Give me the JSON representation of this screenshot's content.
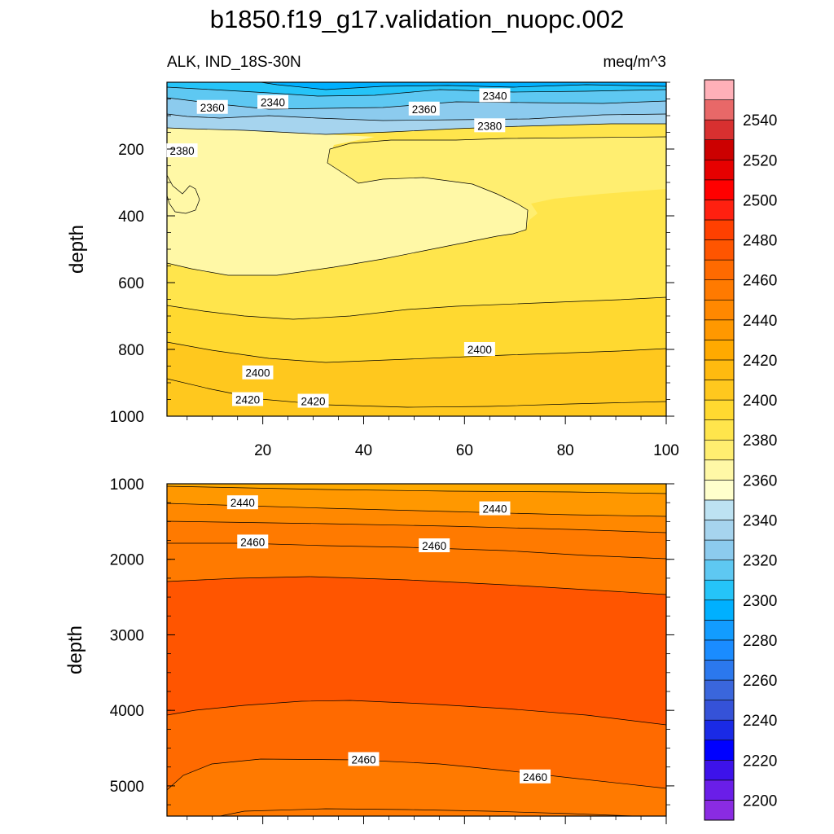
{
  "title": "b1850.f19_g17.validation_nuopc.002",
  "chart_data": {
    "type": "heatmap",
    "title": "b1850.f19_g17.validation_nuopc.002",
    "variable_label": "ALK, IND_18S-30N",
    "units_label": "meq/m^3",
    "ylabel": "depth",
    "x_ticks": [
      "20",
      "40",
      "60",
      "80",
      "100"
    ],
    "x_tick_values": [
      20,
      40,
      60,
      80,
      100
    ],
    "xlim": [
      1,
      100
    ],
    "panels": [
      {
        "name": "upper",
        "ylim": [
          0,
          1000
        ],
        "y_ticks": [
          "200",
          "400",
          "600",
          "800",
          "1000"
        ],
        "y_tick_values": [
          200,
          400,
          600,
          800,
          1000
        ],
        "contour_labels": [
          {
            "text": "2340",
            "x": 22,
            "y": 60
          },
          {
            "text": "2360",
            "x": 10,
            "y": 75
          },
          {
            "text": "2380",
            "x": 4,
            "y": 205
          },
          {
            "text": "2360",
            "x": 52,
            "y": 80
          },
          {
            "text": "2340",
            "x": 66,
            "y": 40
          },
          {
            "text": "2380",
            "x": 65,
            "y": 130
          },
          {
            "text": "2400",
            "x": 19,
            "y": 870
          },
          {
            "text": "2400",
            "x": 63,
            "y": 800
          },
          {
            "text": "2420",
            "x": 17,
            "y": 950
          },
          {
            "text": "2420",
            "x": 30,
            "y": 955
          }
        ]
      },
      {
        "name": "lower",
        "ylim": [
          1000,
          5400
        ],
        "y_ticks": [
          "1000",
          "2000",
          "3000",
          "4000",
          "5000"
        ],
        "y_tick_values": [
          1000,
          2000,
          3000,
          4000,
          5000
        ],
        "contour_labels": [
          {
            "text": "2440",
            "x": 16,
            "y": 1250
          },
          {
            "text": "2440",
            "x": 66,
            "y": 1330
          },
          {
            "text": "2460",
            "x": 18,
            "y": 1770
          },
          {
            "text": "2460",
            "x": 54,
            "y": 1820
          },
          {
            "text": "2460",
            "x": 40,
            "y": 4650
          },
          {
            "text": "2460",
            "x": 74,
            "y": 4880
          }
        ]
      }
    ],
    "colorbar": {
      "levels_min": 2190,
      "levels_step": 10,
      "labels": [
        "2200",
        "2220",
        "2240",
        "2260",
        "2280",
        "2300",
        "2320",
        "2340",
        "2360",
        "2380",
        "2400",
        "2420",
        "2440",
        "2460",
        "2480",
        "2500",
        "2520",
        "2540"
      ],
      "colors": [
        "#8a2be2",
        "#6a1ee8",
        "#3d12ea",
        "#0000ff",
        "#1a2ae6",
        "#3552d8",
        "#3a66dc",
        "#2b78ee",
        "#1a8cff",
        "#129cff",
        "#00b0ff",
        "#25c4f8",
        "#5ec8f2",
        "#8ccbee",
        "#a6d4ee",
        "#bde2f2",
        "#ffffcc",
        "#fff8a6",
        "#ffee70",
        "#ffe54c",
        "#ffd930",
        "#ffc81e",
        "#ffba0f",
        "#ffaa00",
        "#ff9800",
        "#ff8800",
        "#ff7a00",
        "#ff6a00",
        "#ff5500",
        "#ff4000",
        "#ff2010",
        "#ff0000",
        "#e60000",
        "#cc0000",
        "#d83030",
        "#e86868",
        "#ffb0b8"
      ]
    }
  }
}
